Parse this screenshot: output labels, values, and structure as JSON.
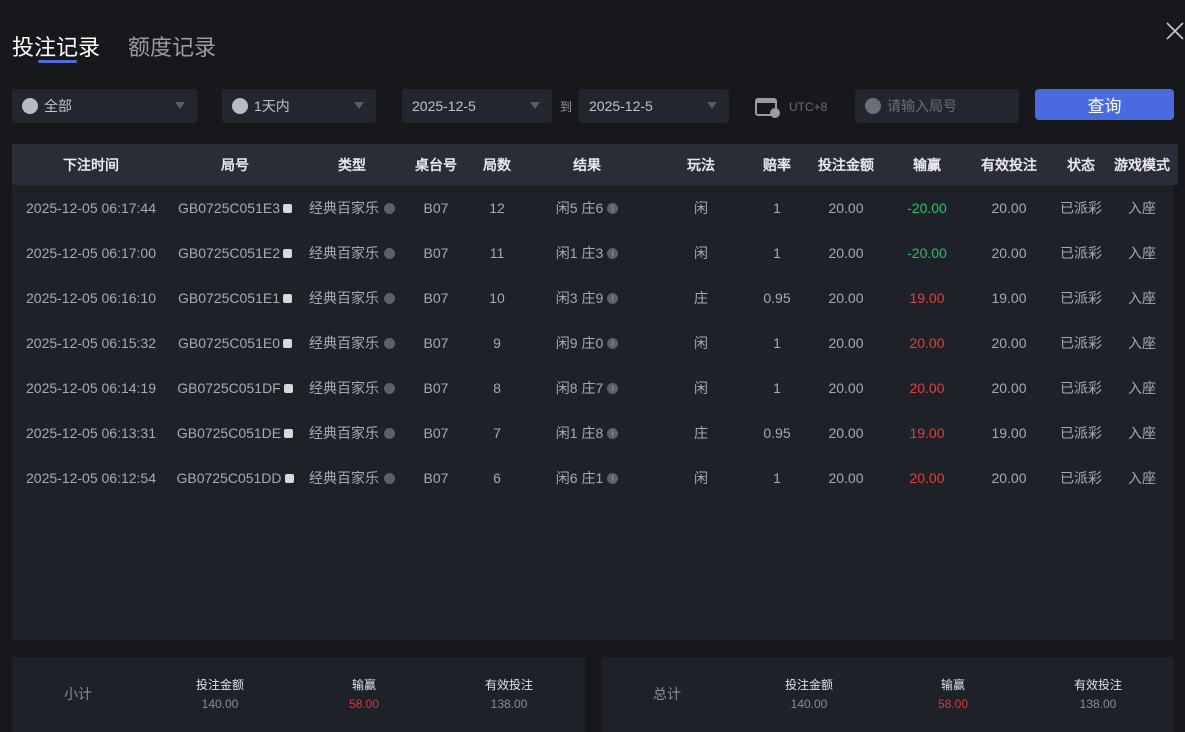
{
  "tabs": [
    {
      "label": "投注记录",
      "active": true
    },
    {
      "label": "额度记录",
      "active": false
    }
  ],
  "filters": {
    "game_type": "全部",
    "period": "1天内",
    "date_from": "2025-12-5",
    "to_label": "到",
    "date_to": "2025-12-5",
    "timezone": "UTC+8",
    "round_placeholder": "请输入局号",
    "query_label": "查询"
  },
  "colors": {
    "accent": "#4a6be0",
    "win": "#e43e3e",
    "loss": "#1fc46a"
  },
  "table": {
    "headers": [
      "下注时间",
      "局号",
      "类型",
      "桌台号",
      "局数",
      "结果",
      "玩法",
      "赔率",
      "投注金额",
      "输赢",
      "有效投注",
      "状态",
      "游戏模式"
    ],
    "rows": [
      [
        "2025-12-05 06:17:44",
        "GB0725C051E3",
        "经典百家乐",
        "B07",
        "12",
        "闲5 庄6",
        "闲",
        "1",
        "20.00",
        "-20.00",
        "20.00",
        "已派彩",
        "入座"
      ],
      [
        "2025-12-05 06:17:00",
        "GB0725C051E2",
        "经典百家乐",
        "B07",
        "11",
        "闲1 庄3",
        "闲",
        "1",
        "20.00",
        "-20.00",
        "20.00",
        "已派彩",
        "入座"
      ],
      [
        "2025-12-05 06:16:10",
        "GB0725C051E1",
        "经典百家乐",
        "B07",
        "10",
        "闲3 庄9",
        "庄",
        "0.95",
        "20.00",
        "19.00",
        "19.00",
        "已派彩",
        "入座"
      ],
      [
        "2025-12-05 06:15:32",
        "GB0725C051E0",
        "经典百家乐",
        "B07",
        "9",
        "闲9 庄0",
        "闲",
        "1",
        "20.00",
        "20.00",
        "20.00",
        "已派彩",
        "入座"
      ],
      [
        "2025-12-05 06:14:19",
        "GB0725C051DF",
        "经典百家乐",
        "B07",
        "8",
        "闲8 庄7",
        "闲",
        "1",
        "20.00",
        "20.00",
        "20.00",
        "已派彩",
        "入座"
      ],
      [
        "2025-12-05 06:13:31",
        "GB0725C051DE",
        "经典百家乐",
        "B07",
        "7",
        "闲1 庄8",
        "庄",
        "0.95",
        "20.00",
        "19.00",
        "19.00",
        "已派彩",
        "入座"
      ],
      [
        "2025-12-05 06:12:54",
        "GB0725C051DD",
        "经典百家乐",
        "B07",
        "6",
        "闲6 庄1",
        "闲",
        "1",
        "20.00",
        "20.00",
        "20.00",
        "已派彩",
        "入座"
      ]
    ]
  },
  "subtotal": {
    "label": "小计",
    "bet_label": "投注金额",
    "bet": "140.00",
    "win_label": "输赢",
    "win": "58.00",
    "valid_label": "有效投注",
    "valid": "138.00"
  },
  "total": {
    "label": "总计",
    "bet_label": "投注金额",
    "bet": "140.00",
    "win_label": "输赢",
    "win": "58.00",
    "valid_label": "有效投注",
    "valid": "138.00"
  }
}
